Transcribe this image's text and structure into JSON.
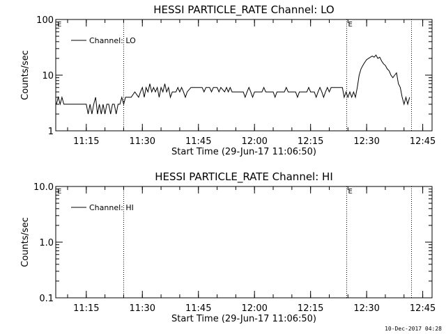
{
  "footer": {
    "timestamp": "10-Dec-2017 04:28"
  },
  "chart_data": [
    {
      "type": "line",
      "title": "HESSI PARTICLE_RATE Channel: LO",
      "xlabel": "Start Time (29-Jun-17 11:06:50)",
      "ylabel": "Counts/sec",
      "yscale": "log",
      "ylim": [
        1,
        100
      ],
      "yticks": [
        1,
        10,
        100
      ],
      "ytick_labels": [
        "1",
        "10",
        "100"
      ],
      "xlim": [
        "11:06:50",
        "12:47:30"
      ],
      "xticks": [
        "11:15",
        "11:30",
        "11:45",
        "12:00",
        "12:15",
        "12:30",
        "12:45"
      ],
      "legend": {
        "position": "top-left",
        "entries": [
          "Channel: LO"
        ]
      },
      "markers": [
        {
          "time": "11:25:00",
          "label": ""
        },
        {
          "time": "12:24:40",
          "label": "E"
        },
        {
          "time": "12:42:00",
          "label": ""
        }
      ],
      "corner_label": "E",
      "series": [
        {
          "name": "Channel: LO",
          "points": [
            [
              "11:07:00",
              3
            ],
            [
              "11:07:30",
              4
            ],
            [
              "11:08:00",
              3
            ],
            [
              "11:08:30",
              4
            ],
            [
              "11:09:00",
              3
            ],
            [
              "11:10:00",
              3
            ],
            [
              "11:11:00",
              3
            ],
            [
              "11:12:00",
              3
            ],
            [
              "11:13:00",
              3
            ],
            [
              "11:14:00",
              3
            ],
            [
              "11:15:00",
              3
            ],
            [
              "11:15:30",
              2
            ],
            [
              "11:16:00",
              3
            ],
            [
              "11:16:30",
              2
            ],
            [
              "11:17:00",
              3
            ],
            [
              "11:17:30",
              4
            ],
            [
              "11:18:00",
              2
            ],
            [
              "11:18:30",
              3
            ],
            [
              "11:19:00",
              2
            ],
            [
              "11:19:30",
              3
            ],
            [
              "11:20:00",
              2
            ],
            [
              "11:20:30",
              3
            ],
            [
              "11:21:00",
              3
            ],
            [
              "11:21:30",
              2
            ],
            [
              "11:22:00",
              3
            ],
            [
              "11:22:30",
              3
            ],
            [
              "11:23:00",
              2
            ],
            [
              "11:23:30",
              3
            ],
            [
              "11:24:00",
              3
            ],
            [
              "11:24:30",
              4
            ],
            [
              "11:25:00",
              3
            ],
            [
              "11:25:30",
              4
            ],
            [
              "11:26:00",
              4
            ],
            [
              "11:27:00",
              4
            ],
            [
              "11:28:00",
              5
            ],
            [
              "11:29:00",
              4
            ],
            [
              "11:29:30",
              5
            ],
            [
              "11:30:00",
              6
            ],
            [
              "11:30:30",
              4
            ],
            [
              "11:31:00",
              6
            ],
            [
              "11:31:30",
              5
            ],
            [
              "11:32:00",
              7
            ],
            [
              "11:32:30",
              5
            ],
            [
              "11:33:00",
              6
            ],
            [
              "11:33:30",
              5
            ],
            [
              "11:34:00",
              6
            ],
            [
              "11:34:30",
              4
            ],
            [
              "11:35:00",
              6
            ],
            [
              "11:35:30",
              5
            ],
            [
              "11:36:00",
              7
            ],
            [
              "11:36:30",
              5
            ],
            [
              "11:37:00",
              6
            ],
            [
              "11:37:30",
              4
            ],
            [
              "11:38:00",
              5
            ],
            [
              "11:39:00",
              5
            ],
            [
              "11:39:30",
              6
            ],
            [
              "11:40:00",
              5
            ],
            [
              "11:40:30",
              6
            ],
            [
              "11:41:00",
              5
            ],
            [
              "11:41:30",
              4
            ],
            [
              "11:42:00",
              5
            ],
            [
              "11:43:00",
              6
            ],
            [
              "11:44:00",
              6
            ],
            [
              "11:45:00",
              6
            ],
            [
              "11:46:00",
              6
            ],
            [
              "11:46:30",
              5
            ],
            [
              "11:47:00",
              6
            ],
            [
              "11:48:00",
              6
            ],
            [
              "11:48:30",
              5
            ],
            [
              "11:49:00",
              6
            ],
            [
              "11:50:00",
              6
            ],
            [
              "11:50:30",
              5
            ],
            [
              "11:51:00",
              6
            ],
            [
              "11:52:00",
              5
            ],
            [
              "11:52:30",
              6
            ],
            [
              "11:53:00",
              5
            ],
            [
              "11:53:30",
              6
            ],
            [
              "11:54:00",
              5
            ],
            [
              "11:55:00",
              5
            ],
            [
              "11:56:00",
              5
            ],
            [
              "11:57:00",
              5
            ],
            [
              "11:57:30",
              4
            ],
            [
              "11:58:00",
              5
            ],
            [
              "11:58:30",
              6
            ],
            [
              "11:59:00",
              5
            ],
            [
              "11:59:30",
              4
            ],
            [
              "12:00:00",
              5
            ],
            [
              "12:01:00",
              5
            ],
            [
              "12:02:00",
              5
            ],
            [
              "12:02:30",
              6
            ],
            [
              "12:03:00",
              5
            ],
            [
              "12:04:00",
              5
            ],
            [
              "12:05:00",
              5
            ],
            [
              "12:05:30",
              4
            ],
            [
              "12:06:00",
              5
            ],
            [
              "12:07:00",
              5
            ],
            [
              "12:08:00",
              5
            ],
            [
              "12:08:30",
              6
            ],
            [
              "12:09:00",
              5
            ],
            [
              "12:10:00",
              5
            ],
            [
              "12:11:00",
              5
            ],
            [
              "12:11:30",
              4
            ],
            [
              "12:12:00",
              5
            ],
            [
              "12:13:00",
              5
            ],
            [
              "12:14:00",
              5
            ],
            [
              "12:14:30",
              6
            ],
            [
              "12:15:00",
              5
            ],
            [
              "12:16:00",
              5
            ],
            [
              "12:16:30",
              4
            ],
            [
              "12:17:00",
              5
            ],
            [
              "12:17:30",
              6
            ],
            [
              "12:18:00",
              5
            ],
            [
              "12:18:30",
              4
            ],
            [
              "12:19:00",
              5
            ],
            [
              "12:19:30",
              6
            ],
            [
              "12:20:00",
              5
            ],
            [
              "12:20:30",
              6
            ],
            [
              "12:21:00",
              6
            ],
            [
              "12:22:00",
              6
            ],
            [
              "12:23:00",
              6
            ],
            [
              "12:23:30",
              6
            ],
            [
              "12:24:00",
              4
            ],
            [
              "12:24:30",
              5
            ],
            [
              "12:25:00",
              4
            ],
            [
              "12:25:30",
              5
            ],
            [
              "12:26:00",
              4
            ],
            [
              "12:26:30",
              5
            ],
            [
              "12:27:00",
              4
            ],
            [
              "12:27:30",
              6
            ],
            [
              "12:28:00",
              10
            ],
            [
              "12:28:30",
              13
            ],
            [
              "12:29:00",
              15
            ],
            [
              "12:29:30",
              17
            ],
            [
              "12:30:00",
              19
            ],
            [
              "12:30:30",
              20
            ],
            [
              "12:31:00",
              21
            ],
            [
              "12:31:30",
              22
            ],
            [
              "12:32:00",
              21
            ],
            [
              "12:32:30",
              23
            ],
            [
              "12:33:00",
              20
            ],
            [
              "12:33:30",
              21
            ],
            [
              "12:34:00",
              18
            ],
            [
              "12:34:30",
              16
            ],
            [
              "12:35:00",
              15
            ],
            [
              "12:35:30",
              13
            ],
            [
              "12:36:00",
              12
            ],
            [
              "12:36:30",
              10
            ],
            [
              "12:37:00",
              9
            ],
            [
              "12:37:30",
              10
            ],
            [
              "12:38:00",
              11
            ],
            [
              "12:38:30",
              7
            ],
            [
              "12:39:00",
              6
            ],
            [
              "12:39:30",
              4
            ],
            [
              "12:40:00",
              3
            ],
            [
              "12:40:30",
              4
            ],
            [
              "12:41:00",
              3
            ],
            [
              "12:41:30",
              4
            ]
          ]
        }
      ]
    },
    {
      "type": "line",
      "title": "HESSI PARTICLE_RATE Channel: HI",
      "xlabel": "Start Time (29-Jun-17 11:06:50)",
      "ylabel": "Counts/sec",
      "yscale": "log",
      "ylim": [
        0.1,
        10
      ],
      "yticks": [
        0.1,
        1,
        10
      ],
      "ytick_labels": [
        "0.1",
        "1.0",
        "10.0"
      ],
      "xlim": [
        "11:06:50",
        "12:47:30"
      ],
      "xticks": [
        "11:15",
        "11:30",
        "11:45",
        "12:00",
        "12:15",
        "12:30",
        "12:45"
      ],
      "legend": {
        "position": "top-left",
        "entries": [
          "Channel: HI"
        ]
      },
      "markers": [
        {
          "time": "11:25:00",
          "label": ""
        },
        {
          "time": "12:24:40",
          "label": "E"
        },
        {
          "time": "12:42:00",
          "label": ""
        }
      ],
      "corner_label": "E",
      "series": [
        {
          "name": "Channel: HI",
          "points": []
        }
      ]
    }
  ]
}
